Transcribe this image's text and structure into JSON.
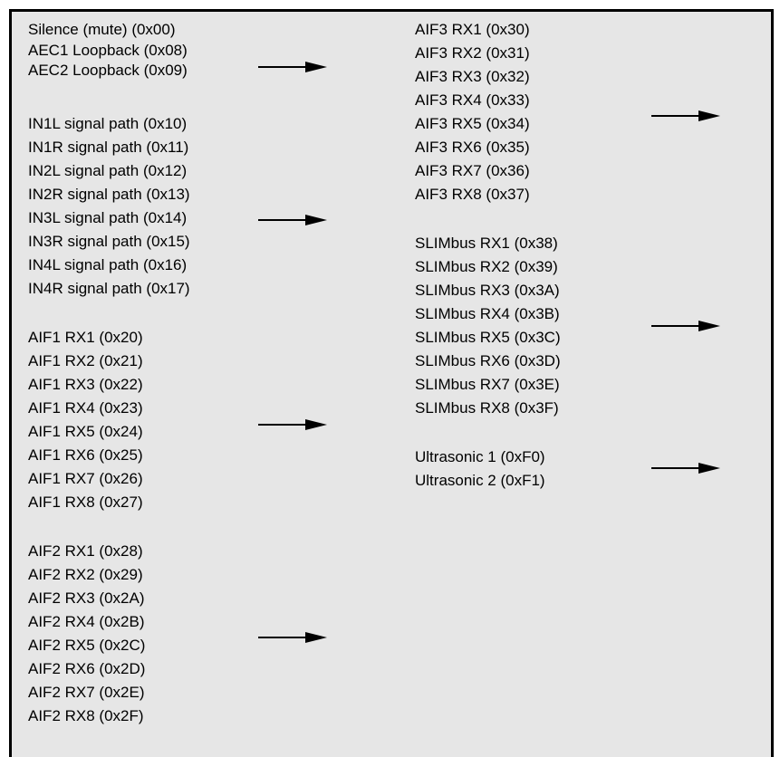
{
  "left_column": [
    {
      "items": [
        "Silence (mute) (0x00)",
        "AEC1 Loopback (0x08)",
        "AEC2 Loopback (0x09)"
      ]
    },
    {
      "items": [
        "IN1L signal path (0x10)",
        "IN1R signal path (0x11)",
        "IN2L signal path (0x12)",
        "IN2R signal path (0x13)",
        "IN3L signal path (0x14)",
        "IN3R signal path (0x15)",
        "IN4L signal path (0x16)",
        "IN4R signal path (0x17)"
      ]
    },
    {
      "items": [
        "AIF1 RX1 (0x20)",
        "AIF1 RX2 (0x21)",
        "AIF1 RX3 (0x22)",
        "AIF1 RX4 (0x23)",
        "AIF1 RX5 (0x24)",
        "AIF1 RX6 (0x25)",
        "AIF1 RX7 (0x26)",
        "AIF1 RX8 (0x27)"
      ]
    },
    {
      "items": [
        "AIF2 RX1 (0x28)",
        "AIF2 RX2 (0x29)",
        "AIF2 RX3 (0x2A)",
        "AIF2 RX4 (0x2B)",
        "AIF2 RX5 (0x2C)",
        "AIF2 RX6 (0x2D)",
        "AIF2 RX7 (0x2E)",
        "AIF2 RX8 (0x2F)"
      ]
    }
  ],
  "right_column": [
    {
      "items": [
        "AIF3 RX1 (0x30)",
        "AIF3 RX2 (0x31)",
        "AIF3 RX3 (0x32)",
        "AIF3 RX4 (0x33)",
        "AIF3 RX5 (0x34)",
        "AIF3 RX6 (0x35)",
        "AIF3 RX7 (0x36)",
        "AIF3 RX8 (0x37)"
      ]
    },
    {
      "items": [
        "SLIMbus RX1 (0x38)",
        "SLIMbus RX2 (0x39)",
        "SLIMbus RX3 (0x3A)",
        "SLIMbus RX4 (0x3B)",
        "SLIMbus RX5 (0x3C)",
        "SLIMbus RX6 (0x3D)",
        "SLIMbus RX7 (0x3E)",
        "SLIMbus RX8 (0x3F)"
      ]
    },
    {
      "items": [
        "Ultrasonic 1 (0xF0)",
        "Ultrasonic 2 (0xF1)"
      ]
    }
  ],
  "colors": {
    "background": "#e6e6e6",
    "border": "#000000",
    "text": "#000000",
    "arrow": "#000000"
  },
  "arrow_icon": "right-arrow-icon"
}
